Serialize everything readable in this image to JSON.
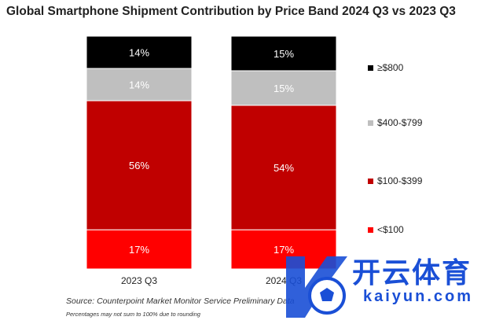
{
  "chart_data": {
    "type": "bar",
    "stacked": true,
    "title": "Global Smartphone Shipment Contribution by Price Band 2024 Q3 vs 2023 Q3",
    "categories": [
      "2023 Q3",
      "2024 Q3"
    ],
    "series": [
      {
        "name": "<$100",
        "color": "#ff0000",
        "values": [
          17,
          17
        ]
      },
      {
        "name": "$100-$399",
        "color": "#c00000",
        "values": [
          56,
          54
        ]
      },
      {
        "name": "$400-$799",
        "color": "#bfbfbf",
        "values": [
          14,
          15
        ]
      },
      {
        "name": "≥$800",
        "color": "#000000",
        "values": [
          14,
          15
        ]
      }
    ],
    "data_labels": [
      [
        "17%",
        "17%"
      ],
      [
        "56%",
        "54%"
      ],
      [
        "14%",
        "15%"
      ],
      [
        "14%",
        "15%"
      ]
    ],
    "legend_position": "right",
    "grid": false,
    "xlabel": "",
    "ylabel": ""
  },
  "source": "Source: Counterpoint Market Monitor Service Preliminary Data",
  "footnote": "Percentages may not sum to 100% due to rounding",
  "watermark": {
    "text_cn": "开云体育",
    "text_en": "kaiyun.com",
    "color": "#1a4fd6"
  }
}
